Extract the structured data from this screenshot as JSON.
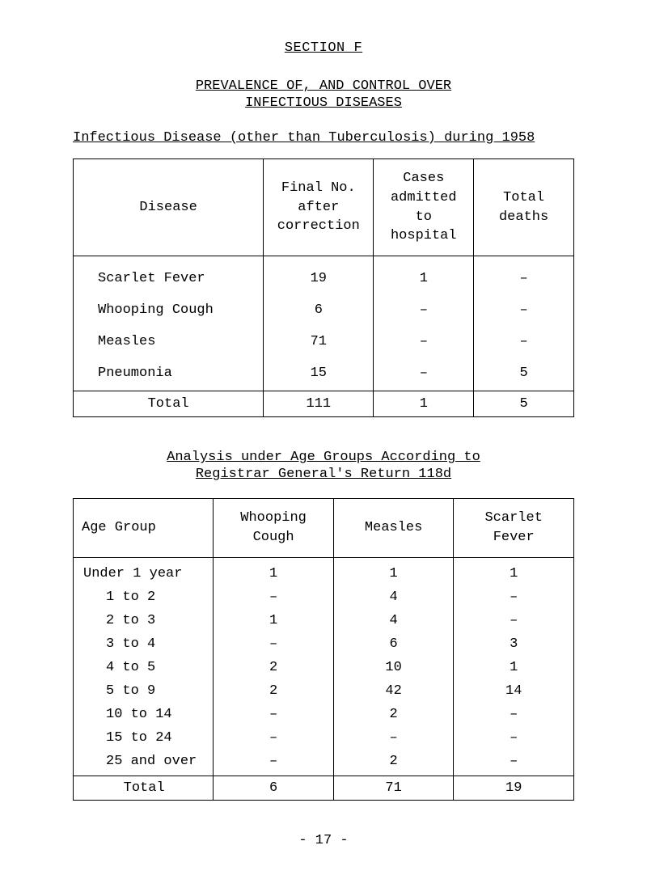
{
  "section_title": "SECTION F",
  "subtitle_line1": "PREVALENCE OF, AND CONTROL OVER",
  "subtitle_line2": "INFECTIOUS DISEASES",
  "header_line": "Infectious Disease (other than Tuberculosis) during 1958",
  "table1": {
    "headers": {
      "disease": "Disease",
      "final_no": "Final No.\nafter\ncorrection",
      "cases": "Cases\nadmitted\nto\nhospital",
      "deaths": "Total\ndeaths"
    },
    "rows": [
      {
        "disease": "Scarlet Fever",
        "final_no": "19",
        "cases": "1",
        "deaths": "–"
      },
      {
        "disease": "Whooping Cough",
        "final_no": "6",
        "cases": "–",
        "deaths": "–"
      },
      {
        "disease": "Measles",
        "final_no": "71",
        "cases": "–",
        "deaths": "–"
      },
      {
        "disease": "Pneumonia",
        "final_no": "15",
        "cases": "–",
        "deaths": "5"
      }
    ],
    "total": {
      "label": "Total",
      "final_no": "111",
      "cases": "1",
      "deaths": "5"
    }
  },
  "analysis_title_1": "Analysis under Age Groups According to",
  "analysis_title_2": "Registrar General's Return 118d",
  "table2": {
    "headers": {
      "age_group": "Age Group",
      "whooping": "Whooping\nCough",
      "measles": "Measles",
      "scarlet": "Scarlet\nFever"
    },
    "rows": [
      {
        "age": "Under 1 year",
        "whooping": "1",
        "measles": "1",
        "scarlet": "1",
        "indent": false
      },
      {
        "age": "1 to 2",
        "whooping": "–",
        "measles": "4",
        "scarlet": "–",
        "indent": true
      },
      {
        "age": "2 to 3",
        "whooping": "1",
        "measles": "4",
        "scarlet": "–",
        "indent": true
      },
      {
        "age": "3 to 4",
        "whooping": "–",
        "measles": "6",
        "scarlet": "3",
        "indent": true
      },
      {
        "age": "4 to 5",
        "whooping": "2",
        "measles": "10",
        "scarlet": "1",
        "indent": true
      },
      {
        "age": "5 to 9",
        "whooping": "2",
        "measles": "42",
        "scarlet": "14",
        "indent": true
      },
      {
        "age": "10 to 14",
        "whooping": "–",
        "measles": "2",
        "scarlet": "–",
        "indent": true
      },
      {
        "age": "15 to 24",
        "whooping": "–",
        "measles": "–",
        "scarlet": "–",
        "indent": true
      },
      {
        "age": "25 and over",
        "whooping": "–",
        "measles": "2",
        "scarlet": "–",
        "indent": true
      }
    ],
    "total": {
      "label": "Total",
      "whooping": "6",
      "measles": "71",
      "scarlet": "19"
    }
  },
  "page_num": "- 17 -"
}
